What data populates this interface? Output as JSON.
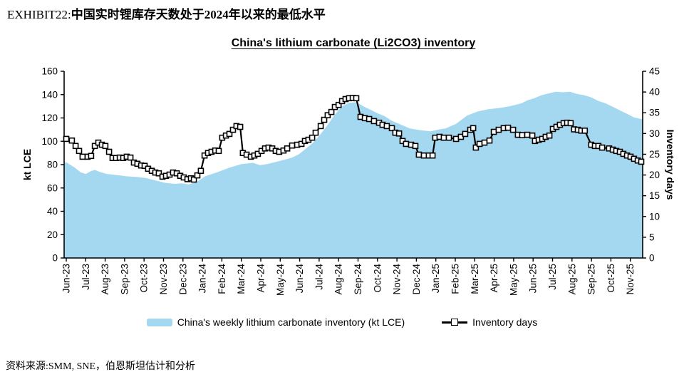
{
  "page": {
    "exhibit_label": "EXHIBIT22:",
    "exhibit_title_zh": "中国实时锂库存天数处于2024年以来的最低水平",
    "source_note": "资料来源:SMM, SNE，伯恩斯坦估计和分析"
  },
  "chart_data": {
    "type": "combo",
    "title": "China's lithium carbonate (Li2CO3) inventory",
    "grid": false,
    "legend_position": "bottom",
    "x_unit": "month index, 0 = Jun-23 tick, 29 = Nov-25 tick (weekly data points)",
    "x_tick_labels": [
      "Jun-23",
      "Jul-23",
      "Aug-23",
      "Sep-23",
      "Oct-23",
      "Nov-23",
      "Dec-23",
      "Jan-24",
      "Feb-24",
      "Mar-24",
      "Apr-24",
      "May-24",
      "Jun-24",
      "Jul-24",
      "Aug-24",
      "Sep-24",
      "Oct-24",
      "Nov-24",
      "Dec-24",
      "Jan-25",
      "Feb-25",
      "Mar-25",
      "Apr-25",
      "May-25",
      "Jun-25",
      "Jul-25",
      "Aug-25",
      "Sep-25",
      "Oct-25",
      "Nov-25"
    ],
    "axes": {
      "left": {
        "title": "kt LCE",
        "min": 0,
        "max": 160,
        "step": 20
      },
      "right": {
        "title": "Inventory days",
        "min": 0,
        "max": 45,
        "step": 5
      }
    },
    "legend": [
      {
        "label": "China's weekly lithium carbonate inventory (kt LCE)",
        "swatch": "area",
        "color": "#A3D8F0"
      },
      {
        "label": "Inventory days",
        "swatch": "line-square-marker",
        "color": "#000000"
      }
    ],
    "series": [
      {
        "name": "China's weekly lithium carbonate inventory (kt LCE)",
        "type": "area",
        "axis": "left",
        "color": "#A3D8F0",
        "points": [
          [
            -0.11,
            82
          ],
          [
            0,
            82
          ],
          [
            0.44,
            77.5
          ],
          [
            0.73,
            73.5
          ],
          [
            1,
            72
          ],
          [
            1.28,
            74.5
          ],
          [
            1.47,
            75.5
          ],
          [
            1.76,
            73.5
          ],
          [
            2.1,
            72
          ],
          [
            2.64,
            71
          ],
          [
            3.1,
            70
          ],
          [
            3.6,
            69.5
          ],
          [
            4.1,
            68.5
          ],
          [
            4.58,
            66.5
          ],
          [
            5.05,
            64.5
          ],
          [
            5.57,
            63.5
          ],
          [
            5.93,
            64
          ],
          [
            6.3,
            63
          ],
          [
            6.7,
            65
          ],
          [
            7.14,
            70
          ],
          [
            7.77,
            73.5
          ],
          [
            8.4,
            77.5
          ],
          [
            9,
            80.5
          ],
          [
            9.6,
            81.5
          ],
          [
            9.96,
            79.5
          ],
          [
            10.33,
            80.5
          ],
          [
            11.06,
            83.5
          ],
          [
            11.6,
            86
          ],
          [
            11.97,
            89
          ],
          [
            12.34,
            94
          ],
          [
            12.7,
            99
          ],
          [
            13.07,
            106
          ],
          [
            13.44,
            114
          ],
          [
            13.81,
            123
          ],
          [
            14.18,
            130
          ],
          [
            14.54,
            133
          ],
          [
            14.91,
            133.5
          ],
          [
            15.27,
            130
          ],
          [
            15.64,
            127
          ],
          [
            16,
            124
          ],
          [
            16.37,
            121.5
          ],
          [
            16.74,
            117.5
          ],
          [
            17.11,
            115
          ],
          [
            17.66,
            111
          ],
          [
            18.2,
            109.5
          ],
          [
            18.75,
            108.5
          ],
          [
            19.12,
            110
          ],
          [
            19.5,
            111
          ],
          [
            20.04,
            115
          ],
          [
            20.6,
            122
          ],
          [
            21.14,
            125.5
          ],
          [
            21.7,
            127.5
          ],
          [
            22.25,
            128.5
          ],
          [
            22.8,
            130
          ],
          [
            23.4,
            132.5
          ],
          [
            23.7,
            135
          ],
          [
            24.07,
            137
          ],
          [
            24.43,
            139.5
          ],
          [
            24.8,
            141
          ],
          [
            25.16,
            142.5
          ],
          [
            25.53,
            142
          ],
          [
            25.9,
            142.5
          ],
          [
            26.26,
            140.5
          ],
          [
            26.63,
            139.5
          ],
          [
            27,
            137.5
          ],
          [
            27.36,
            134.5
          ],
          [
            27.73,
            132.5
          ],
          [
            28.1,
            129.5
          ],
          [
            28.46,
            126.5
          ],
          [
            28.83,
            123.5
          ],
          [
            29.19,
            120.5
          ],
          [
            29.56,
            119
          ],
          [
            29.63,
            119
          ]
        ]
      },
      {
        "name": "Inventory days",
        "type": "line",
        "axis": "right",
        "color": "#000000",
        "marker": {
          "shape": "square",
          "fill": "#FFFFFF",
          "stroke": "#000000",
          "size": 7
        },
        "points": [
          [
            0,
            28.7
          ],
          [
            0.29,
            28.3
          ],
          [
            0.48,
            27
          ],
          [
            0.66,
            25.8
          ],
          [
            0.84,
            24.4
          ],
          [
            1.1,
            24.4
          ],
          [
            1.28,
            24.6
          ],
          [
            1.47,
            27
          ],
          [
            1.65,
            27.8
          ],
          [
            1.83,
            27.3
          ],
          [
            2.01,
            27
          ],
          [
            2.2,
            25.6
          ],
          [
            2.38,
            24.1
          ],
          [
            2.56,
            24.1
          ],
          [
            2.75,
            24.2
          ],
          [
            2.93,
            24.1
          ],
          [
            3.11,
            24.4
          ],
          [
            3.3,
            24.2
          ],
          [
            3.48,
            23
          ],
          [
            3.66,
            22.7
          ],
          [
            3.85,
            22.3
          ],
          [
            4.03,
            22.2
          ],
          [
            4.21,
            21.5
          ],
          [
            4.4,
            21
          ],
          [
            4.58,
            20.6
          ],
          [
            4.76,
            20.4
          ],
          [
            4.95,
            19.6
          ],
          [
            5.13,
            19.8
          ],
          [
            5.31,
            20.1
          ],
          [
            5.49,
            20.6
          ],
          [
            5.68,
            20.4
          ],
          [
            5.86,
            19.8
          ],
          [
            6.04,
            19.4
          ],
          [
            6.23,
            19
          ],
          [
            6.41,
            19.2
          ],
          [
            6.56,
            18.9
          ],
          [
            6.74,
            19.9
          ],
          [
            6.92,
            21
          ],
          [
            7.11,
            24.7
          ],
          [
            7.29,
            25.3
          ],
          [
            7.47,
            25.6
          ],
          [
            7.66,
            25.9
          ],
          [
            7.84,
            25.8
          ],
          [
            8.02,
            29
          ],
          [
            8.21,
            29.5
          ],
          [
            8.39,
            29.9
          ],
          [
            8.57,
            30.9
          ],
          [
            8.75,
            31.8
          ],
          [
            8.94,
            31.6
          ],
          [
            9.08,
            25.3
          ],
          [
            9.27,
            24.9
          ],
          [
            9.49,
            24.4
          ],
          [
            9.67,
            24.7
          ],
          [
            9.85,
            25.1
          ],
          [
            10.04,
            25.8
          ],
          [
            10.22,
            26.4
          ],
          [
            10.4,
            26.6
          ],
          [
            10.59,
            26.4
          ],
          [
            10.77,
            25.8
          ],
          [
            10.95,
            25.6
          ],
          [
            11.17,
            25.9
          ],
          [
            11.36,
            26.4
          ],
          [
            11.61,
            27.1
          ],
          [
            11.87,
            27.3
          ],
          [
            12.09,
            27.5
          ],
          [
            12.27,
            28.2
          ],
          [
            12.45,
            28.5
          ],
          [
            12.64,
            29
          ],
          [
            12.82,
            30.2
          ],
          [
            13.08,
            31.8
          ],
          [
            13.26,
            33.3
          ],
          [
            13.44,
            34.4
          ],
          [
            13.63,
            35.2
          ],
          [
            13.81,
            36.4
          ],
          [
            14,
            36.9
          ],
          [
            14.18,
            37.8
          ],
          [
            14.36,
            38.3
          ],
          [
            14.54,
            38.5
          ],
          [
            14.73,
            38.6
          ],
          [
            14.91,
            38.5
          ],
          [
            15.13,
            34
          ],
          [
            15.35,
            33.7
          ],
          [
            15.57,
            33.5
          ],
          [
            15.82,
            33
          ],
          [
            16.08,
            32.6
          ],
          [
            16.26,
            32.1
          ],
          [
            16.48,
            31.8
          ],
          [
            16.74,
            31.3
          ],
          [
            16.92,
            30.2
          ],
          [
            17.11,
            30
          ],
          [
            17.29,
            28.2
          ],
          [
            17.47,
            27.5
          ],
          [
            17.73,
            27.3
          ],
          [
            17.95,
            27
          ],
          [
            18.13,
            24.9
          ],
          [
            18.39,
            24.7
          ],
          [
            18.64,
            24.7
          ],
          [
            18.83,
            24.7
          ],
          [
            18.97,
            29
          ],
          [
            19.19,
            29.2
          ],
          [
            19.41,
            29
          ],
          [
            19.67,
            29
          ],
          [
            20.04,
            28.7
          ],
          [
            20.29,
            29.2
          ],
          [
            20.51,
            29.9
          ],
          [
            20.77,
            30.9
          ],
          [
            20.92,
            31.3
          ],
          [
            21.06,
            26.6
          ],
          [
            21.25,
            27.5
          ],
          [
            21.5,
            27.8
          ],
          [
            21.76,
            28.3
          ],
          [
            21.98,
            30.4
          ],
          [
            22.23,
            30.9
          ],
          [
            22.49,
            31.3
          ],
          [
            22.71,
            31.4
          ],
          [
            22.97,
            30.9
          ],
          [
            23.22,
            29.7
          ],
          [
            23.44,
            29.6
          ],
          [
            23.7,
            29.7
          ],
          [
            23.96,
            29.5
          ],
          [
            24.1,
            28.2
          ],
          [
            24.29,
            28.5
          ],
          [
            24.47,
            28.7
          ],
          [
            24.65,
            29.2
          ],
          [
            24.84,
            29.5
          ],
          [
            25.02,
            31.1
          ],
          [
            25.2,
            31.6
          ],
          [
            25.38,
            32.1
          ],
          [
            25.57,
            32.5
          ],
          [
            25.75,
            32.6
          ],
          [
            25.93,
            32.5
          ],
          [
            26.11,
            31
          ],
          [
            26.3,
            30.9
          ],
          [
            26.48,
            30.7
          ],
          [
            26.66,
            30.7
          ],
          [
            26.99,
            27.3
          ],
          [
            27.18,
            27
          ],
          [
            27.36,
            27
          ],
          [
            27.55,
            26.6
          ],
          [
            27.91,
            26.4
          ],
          [
            28.1,
            26.1
          ],
          [
            28.28,
            25.8
          ],
          [
            28.46,
            25.6
          ],
          [
            28.64,
            25.1
          ],
          [
            28.83,
            24.7
          ],
          [
            29.01,
            24.4
          ],
          [
            29.19,
            23.9
          ],
          [
            29.38,
            23.5
          ],
          [
            29.56,
            23.2
          ]
        ]
      }
    ]
  }
}
